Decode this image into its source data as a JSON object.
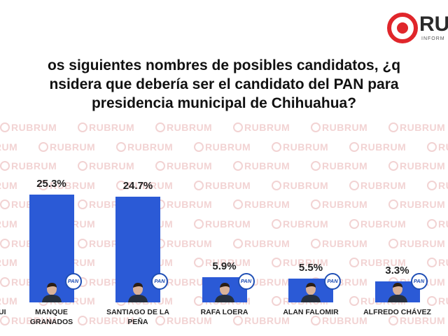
{
  "title": [
    "os siguientes nombres de posibles candidatos, ¿q",
    "nsidera que debería ser el candidato del PAN para",
    "presidencia municipal de Chihuahua?"
  ],
  "logo": {
    "text": "RU",
    "subtext": "INFORM"
  },
  "watermark": "RUBRUM",
  "badge": "PAN",
  "chart_data": {
    "type": "bar",
    "categories": [
      "UI",
      "MANQUE GRANADOS",
      "SANTIAGO DE LA PEÑA",
      "RAFA LOERA",
      "ALAN FALOMIR",
      "ALFREDO CHÁVEZ"
    ],
    "values": [
      null,
      25.3,
      24.7,
      5.9,
      5.5,
      3.3
    ],
    "value_labels": [
      null,
      "25.3%",
      "24.7%",
      "5.9%",
      "5.5%",
      "3.3%"
    ],
    "color": "#2b5ad6"
  }
}
